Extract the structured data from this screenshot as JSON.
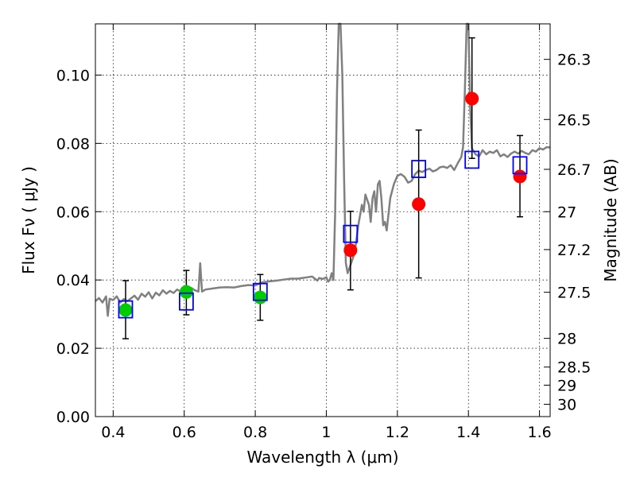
{
  "chart_data": {
    "type": "scatter",
    "title": "",
    "xlabel": "Wavelength  λ (μm)",
    "ylabel": "Flux  Fν  ( μJy )",
    "ylabel_right": "Magnitude (AB)",
    "xlim": [
      0.35,
      1.63
    ],
    "ylim": [
      0,
      0.115
    ],
    "xticks": [
      0.4,
      0.6,
      0.8,
      1.0,
      1.2,
      1.4,
      1.6
    ],
    "xtick_labels": [
      "0.4",
      "0.6",
      "0.8",
      "1",
      "1.2",
      "1.4",
      "1.6"
    ],
    "yticks": [
      0.0,
      0.02,
      0.04,
      0.06,
      0.08,
      0.1
    ],
    "ytick_labels": [
      "0.00",
      "0.02",
      "0.04",
      "0.06",
      "0.08",
      "0.10"
    ],
    "right_ticks": [
      {
        "label": "26.3",
        "flux": 0.1046
      },
      {
        "label": "26.5",
        "flux": 0.087
      },
      {
        "label": "26.7",
        "flux": 0.0724
      },
      {
        "label": "27",
        "flux": 0.06
      },
      {
        "label": "27.2",
        "flux": 0.0489
      },
      {
        "label": "27.5",
        "flux": 0.0364
      },
      {
        "label": "28",
        "flux": 0.0229
      },
      {
        "label": "28.5",
        "flux": 0.0145
      },
      {
        "label": "29",
        "flux": 0.0092
      },
      {
        "label": "30",
        "flux": 0.0036
      }
    ],
    "grid": true,
    "colors": {
      "model": "#808080",
      "observed_optical": "#00cc00",
      "observed_nir": "#ff0000",
      "model_band": "#0000ff",
      "errorbar": "#000000"
    },
    "series": [
      {
        "marker": "circle",
        "color": "#00cc00",
        "points": [
          {
            "x": 0.435,
            "y": 0.0312,
            "yerr_low": 0.0228,
            "yerr_high": 0.0398
          },
          {
            "x": 0.606,
            "y": 0.0365,
            "yerr_low": 0.0298,
            "yerr_high": 0.0428
          },
          {
            "x": 0.814,
            "y": 0.0349,
            "yerr_low": 0.0282,
            "yerr_high": 0.0416
          }
        ]
      },
      {
        "marker": "circle",
        "color": "#ff0000",
        "points": [
          {
            "x": 1.068,
            "y": 0.0487,
            "yerr_low": 0.0371,
            "yerr_high": 0.0601
          },
          {
            "x": 1.26,
            "y": 0.0622,
            "yerr_low": 0.0406,
            "yerr_high": 0.0839
          },
          {
            "x": 1.41,
            "y": 0.0931,
            "yerr_low": 0.0756,
            "yerr_high": 0.1109
          },
          {
            "x": 1.545,
            "y": 0.0703,
            "yerr_low": 0.0585,
            "yerr_high": 0.0823
          }
        ]
      },
      {
        "marker": "open-square",
        "color": "#0000ff",
        "points": [
          {
            "x": 0.435,
            "y": 0.0314
          },
          {
            "x": 0.606,
            "y": 0.0337
          },
          {
            "x": 0.814,
            "y": 0.0365
          },
          {
            "x": 1.068,
            "y": 0.0535
          },
          {
            "x": 1.26,
            "y": 0.0725
          },
          {
            "x": 1.41,
            "y": 0.0752
          },
          {
            "x": 1.545,
            "y": 0.0736
          }
        ]
      },
      {
        "marker": "line",
        "color": "#808080",
        "points": [
          [
            0.35,
            0.0338
          ],
          [
            0.36,
            0.0347
          ],
          [
            0.37,
            0.0334
          ],
          [
            0.38,
            0.0352
          ],
          [
            0.385,
            0.0295
          ],
          [
            0.39,
            0.0345
          ],
          [
            0.4,
            0.0341
          ],
          [
            0.41,
            0.0352
          ],
          [
            0.42,
            0.0334
          ],
          [
            0.43,
            0.0344
          ],
          [
            0.44,
            0.0338
          ],
          [
            0.45,
            0.0346
          ],
          [
            0.46,
            0.0354
          ],
          [
            0.47,
            0.0342
          ],
          [
            0.48,
            0.036
          ],
          [
            0.49,
            0.0351
          ],
          [
            0.5,
            0.0364
          ],
          [
            0.51,
            0.0346
          ],
          [
            0.52,
            0.0363
          ],
          [
            0.53,
            0.0355
          ],
          [
            0.54,
            0.037
          ],
          [
            0.55,
            0.036
          ],
          [
            0.56,
            0.0368
          ],
          [
            0.57,
            0.0362
          ],
          [
            0.58,
            0.0372
          ],
          [
            0.59,
            0.0366
          ],
          [
            0.6,
            0.0371
          ],
          [
            0.61,
            0.0368
          ],
          [
            0.62,
            0.0377
          ],
          [
            0.63,
            0.037
          ],
          [
            0.64,
            0.0366
          ],
          [
            0.645,
            0.0449
          ],
          [
            0.65,
            0.0366
          ],
          [
            0.66,
            0.0372
          ],
          [
            0.68,
            0.0375
          ],
          [
            0.7,
            0.0378
          ],
          [
            0.72,
            0.0379
          ],
          [
            0.74,
            0.0378
          ],
          [
            0.76,
            0.0382
          ],
          [
            0.78,
            0.0385
          ],
          [
            0.8,
            0.0384
          ],
          [
            0.82,
            0.0393
          ],
          [
            0.84,
            0.0396
          ],
          [
            0.86,
            0.0398
          ],
          [
            0.88,
            0.0401
          ],
          [
            0.9,
            0.0404
          ],
          [
            0.92,
            0.0404
          ],
          [
            0.94,
            0.0407
          ],
          [
            0.96,
            0.041
          ],
          [
            0.975,
            0.0398
          ],
          [
            0.98,
            0.0406
          ],
          [
            0.99,
            0.0403
          ],
          [
            1.0,
            0.0408
          ],
          [
            1.005,
            0.0395
          ],
          [
            1.01,
            0.04
          ],
          [
            1.015,
            0.042
          ],
          [
            1.02,
            0.04
          ],
          [
            1.025,
            0.06
          ],
          [
            1.03,
            0.095
          ],
          [
            1.035,
            0.115
          ],
          [
            1.04,
            0.115
          ],
          [
            1.045,
            0.1
          ],
          [
            1.05,
            0.07
          ],
          [
            1.055,
            0.045
          ],
          [
            1.06,
            0.042
          ],
          [
            1.07,
            0.045
          ],
          [
            1.08,
            0.048
          ],
          [
            1.09,
            0.056
          ],
          [
            1.1,
            0.062
          ],
          [
            1.105,
            0.06
          ],
          [
            1.11,
            0.065
          ],
          [
            1.12,
            0.062
          ],
          [
            1.125,
            0.057
          ],
          [
            1.13,
            0.064
          ],
          [
            1.135,
            0.066
          ],
          [
            1.14,
            0.06
          ],
          [
            1.145,
            0.068
          ],
          [
            1.15,
            0.069
          ],
          [
            1.155,
            0.064
          ],
          [
            1.16,
            0.056
          ],
          [
            1.165,
            0.057
          ],
          [
            1.17,
            0.0545
          ],
          [
            1.18,
            0.064
          ],
          [
            1.19,
            0.068
          ],
          [
            1.2,
            0.0705
          ],
          [
            1.21,
            0.071
          ],
          [
            1.22,
            0.0702
          ],
          [
            1.23,
            0.0685
          ],
          [
            1.24,
            0.069
          ],
          [
            1.25,
            0.071
          ],
          [
            1.26,
            0.072
          ],
          [
            1.27,
            0.0716
          ],
          [
            1.28,
            0.0722
          ],
          [
            1.29,
            0.0726
          ],
          [
            1.3,
            0.0718
          ],
          [
            1.31,
            0.0722
          ],
          [
            1.32,
            0.073
          ],
          [
            1.33,
            0.0732
          ],
          [
            1.34,
            0.0728
          ],
          [
            1.35,
            0.0736
          ],
          [
            1.36,
            0.0722
          ],
          [
            1.37,
            0.0742
          ],
          [
            1.38,
            0.076
          ],
          [
            1.385,
            0.079
          ],
          [
            1.39,
            0.096
          ],
          [
            1.395,
            0.115
          ],
          [
            1.4,
            0.115
          ],
          [
            1.405,
            0.09
          ],
          [
            1.41,
            0.0785
          ],
          [
            1.42,
            0.0768
          ],
          [
            1.43,
            0.0762
          ],
          [
            1.44,
            0.078
          ],
          [
            1.45,
            0.0768
          ],
          [
            1.46,
            0.0776
          ],
          [
            1.47,
            0.0772
          ],
          [
            1.48,
            0.078
          ],
          [
            1.49,
            0.0762
          ],
          [
            1.5,
            0.0768
          ],
          [
            1.51,
            0.076
          ],
          [
            1.52,
            0.077
          ],
          [
            1.53,
            0.0776
          ],
          [
            1.54,
            0.077
          ],
          [
            1.55,
            0.0778
          ],
          [
            1.56,
            0.0772
          ],
          [
            1.57,
            0.0768
          ],
          [
            1.58,
            0.078
          ],
          [
            1.59,
            0.0776
          ],
          [
            1.6,
            0.0786
          ],
          [
            1.61,
            0.0782
          ],
          [
            1.62,
            0.0789
          ],
          [
            1.63,
            0.0788
          ]
        ]
      }
    ]
  }
}
